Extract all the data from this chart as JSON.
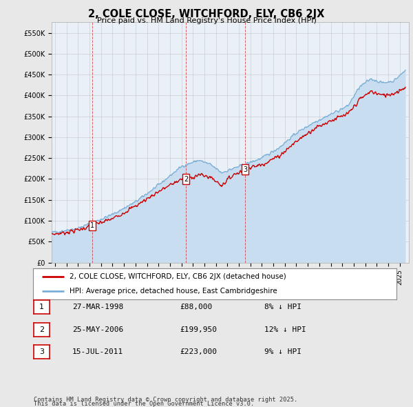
{
  "title": "2, COLE CLOSE, WITCHFORD, ELY, CB6 2JX",
  "subtitle": "Price paid vs. HM Land Registry's House Price Index (HPI)",
  "background_color": "#e8e8e8",
  "plot_bg_color": "#eaf0f8",
  "ylim": [
    0,
    575000
  ],
  "yticks": [
    0,
    50000,
    100000,
    150000,
    200000,
    250000,
    300000,
    350000,
    400000,
    450000,
    500000,
    550000
  ],
  "ytick_labels": [
    "£0",
    "£50K",
    "£100K",
    "£150K",
    "£200K",
    "£250K",
    "£300K",
    "£350K",
    "£400K",
    "£450K",
    "£500K",
    "£550K"
  ],
  "xlim_start": 1994.7,
  "xlim_end": 2025.8,
  "red_color": "#cc0000",
  "blue_color": "#7aaed6",
  "blue_fill_color": "#c8ddf0",
  "sales": [
    {
      "label": "1",
      "date": 1998.23,
      "price": 88000,
      "display_date": "27-MAR-1998",
      "display_price": "£88,000",
      "pct": "8% ↓ HPI"
    },
    {
      "label": "2",
      "date": 2006.39,
      "price": 199950,
      "display_date": "25-MAY-2006",
      "display_price": "£199,950",
      "pct": "12% ↓ HPI"
    },
    {
      "label": "3",
      "date": 2011.54,
      "price": 223000,
      "display_date": "15-JUL-2011",
      "display_price": "£223,000",
      "pct": "9% ↓ HPI"
    }
  ],
  "legend_label_red": "2, COLE CLOSE, WITCHFORD, ELY, CB6 2JX (detached house)",
  "legend_label_blue": "HPI: Average price, detached house, East Cambridgeshire",
  "footnote_line1": "Contains HM Land Registry data © Crown copyright and database right 2025.",
  "footnote_line2": "This data is licensed under the Open Government Licence v3.0.",
  "hpi_waypoints_years": [
    1994.7,
    1995.5,
    1997.0,
    1998.23,
    2000.0,
    2002.0,
    2004.0,
    2006.0,
    2007.5,
    2008.5,
    2009.5,
    2010.5,
    2011.54,
    2013.0,
    2014.5,
    2016.0,
    2017.5,
    2019.0,
    2020.5,
    2021.5,
    2022.5,
    2023.5,
    2024.5,
    2025.5
  ],
  "hpi_waypoints_vals": [
    72000,
    75000,
    82000,
    95000,
    115000,
    145000,
    185000,
    230000,
    245000,
    235000,
    215000,
    225000,
    235000,
    250000,
    275000,
    310000,
    335000,
    355000,
    375000,
    420000,
    440000,
    430000,
    435000,
    460000
  ],
  "prop_waypoints_years": [
    1994.7,
    1995.5,
    1997.0,
    1998.23,
    2000.0,
    2002.0,
    2004.0,
    2006.0,
    2006.39,
    2007.5,
    2008.5,
    2009.5,
    2010.5,
    2011.54,
    2013.0,
    2014.5,
    2016.0,
    2017.5,
    2019.0,
    2020.5,
    2021.5,
    2022.5,
    2023.5,
    2024.5,
    2025.5
  ],
  "prop_waypoints_vals": [
    68000,
    70000,
    78000,
    88000,
    105000,
    135000,
    170000,
    199950,
    199950,
    210000,
    205000,
    185000,
    210000,
    223000,
    235000,
    255000,
    290000,
    320000,
    340000,
    355000,
    390000,
    410000,
    400000,
    405000,
    420000
  ]
}
